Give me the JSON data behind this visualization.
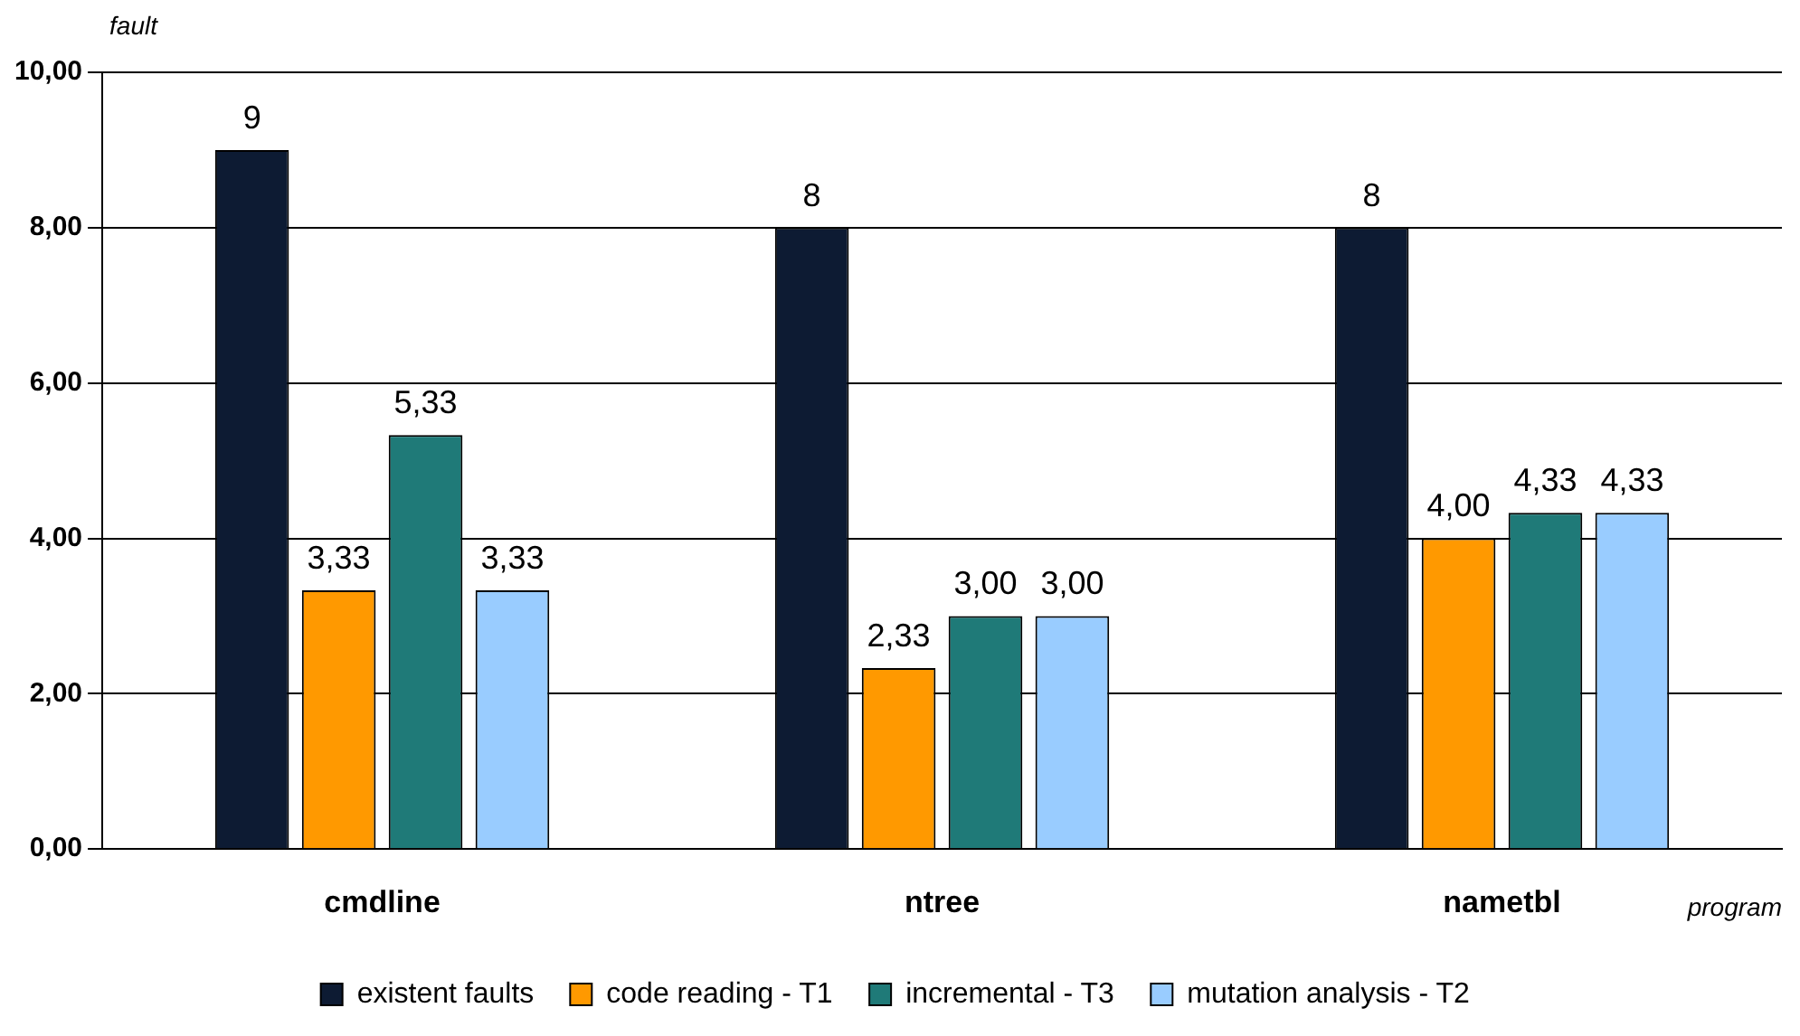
{
  "chart_data": {
    "type": "bar",
    "xlabel": "program",
    "ylabel": "fault",
    "categories": [
      "cmdline",
      "ntree",
      "nametbl"
    ],
    "series": [
      {
        "name": "existent faults",
        "color": "#0d1b33",
        "values": [
          9,
          8,
          8
        ],
        "value_labels": [
          "9",
          "8",
          "8"
        ]
      },
      {
        "name": "code reading - T1",
        "color": "#ff9900",
        "values": [
          3.33,
          2.33,
          4.0
        ],
        "value_labels": [
          "3,33",
          "2,33",
          "4,00"
        ]
      },
      {
        "name": "incremental - T3",
        "color": "#1f7a78",
        "values": [
          5.33,
          3.0,
          4.33
        ],
        "value_labels": [
          "5,33",
          "3,00",
          "4,33"
        ]
      },
      {
        "name": "mutation analysis - T2",
        "color": "#99ccff",
        "values": [
          3.33,
          3.0,
          4.33
        ],
        "value_labels": [
          "3,33",
          "3,00",
          "4,33"
        ]
      }
    ],
    "ylim": [
      0,
      10
    ],
    "yticks": [
      {
        "value": 0,
        "label": "0,00"
      },
      {
        "value": 2,
        "label": "2,00"
      },
      {
        "value": 4,
        "label": "4,00"
      },
      {
        "value": 6,
        "label": "6,00"
      },
      {
        "value": 8,
        "label": "8,00"
      },
      {
        "value": 10,
        "label": "10,00"
      }
    ],
    "grid": "y",
    "legend": "bottom"
  }
}
